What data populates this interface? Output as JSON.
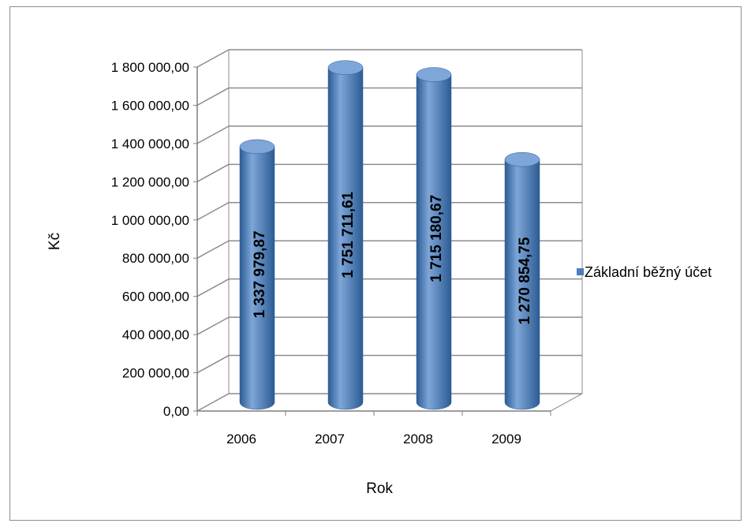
{
  "chart_data": {
    "type": "bar",
    "style": "3d-cylinder",
    "categories": [
      "2006",
      "2007",
      "2008",
      "2009"
    ],
    "series": [
      {
        "name": "Základní běžný účet",
        "values": [
          1337979.87,
          1751711.61,
          1715180.67,
          1270854.75
        ],
        "labels": [
          "1 337 979,87",
          "1 751 711,61",
          "1 715 180,67",
          "1 270 854,75"
        ]
      }
    ],
    "y_ticks": [
      "0,00",
      "200 000,00",
      "400 000,00",
      "600 000,00",
      "800 000,00",
      "1 000 000,00",
      "1 200 000,00",
      "1 400 000,00",
      "1 600 000,00",
      "1 800 000,00"
    ],
    "xlabel": "Rok",
    "ylabel": "Kč",
    "ylim": [
      0,
      1800000
    ],
    "grid": true,
    "legend_position": "right",
    "colors": {
      "bar": "#4a7ebb",
      "bar_dark": "#2c5c94",
      "bar_light": "#7ea6d8",
      "grid": "#8c8c8c"
    }
  }
}
